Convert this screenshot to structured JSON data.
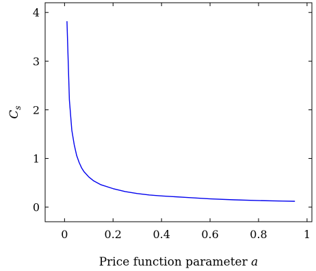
{
  "chart_data": {
    "type": "line",
    "title": "",
    "xlabel": "Price function parameter",
    "xlabel_var": "a",
    "ylabel": "C",
    "ylabel_sub": "s",
    "xlim": [
      -0.08,
      1.02
    ],
    "ylim": [
      -0.3,
      4.2
    ],
    "xticks": [
      0,
      0.2,
      0.4,
      0.6,
      0.8,
      1
    ],
    "xtick_labels": [
      "0",
      "0.2",
      "0.4",
      "0.6",
      "0.8",
      "1"
    ],
    "yticks": [
      0,
      1,
      2,
      3,
      4
    ],
    "ytick_labels": [
      "0",
      "1",
      "2",
      "3",
      "4"
    ],
    "grid": false,
    "series": [
      {
        "color": "#0000ee",
        "x": [
          0.01,
          0.02,
          0.03,
          0.04,
          0.05,
          0.06,
          0.07,
          0.08,
          0.1,
          0.12,
          0.15,
          0.2,
          0.25,
          0.3,
          0.35,
          0.4,
          0.5,
          0.6,
          0.7,
          0.8,
          0.9,
          0.95
        ],
        "y": [
          3.82,
          2.2,
          1.58,
          1.28,
          1.06,
          0.92,
          0.81,
          0.73,
          0.62,
          0.54,
          0.46,
          0.38,
          0.32,
          0.28,
          0.25,
          0.23,
          0.2,
          0.17,
          0.15,
          0.135,
          0.125,
          0.12
        ]
      }
    ]
  }
}
